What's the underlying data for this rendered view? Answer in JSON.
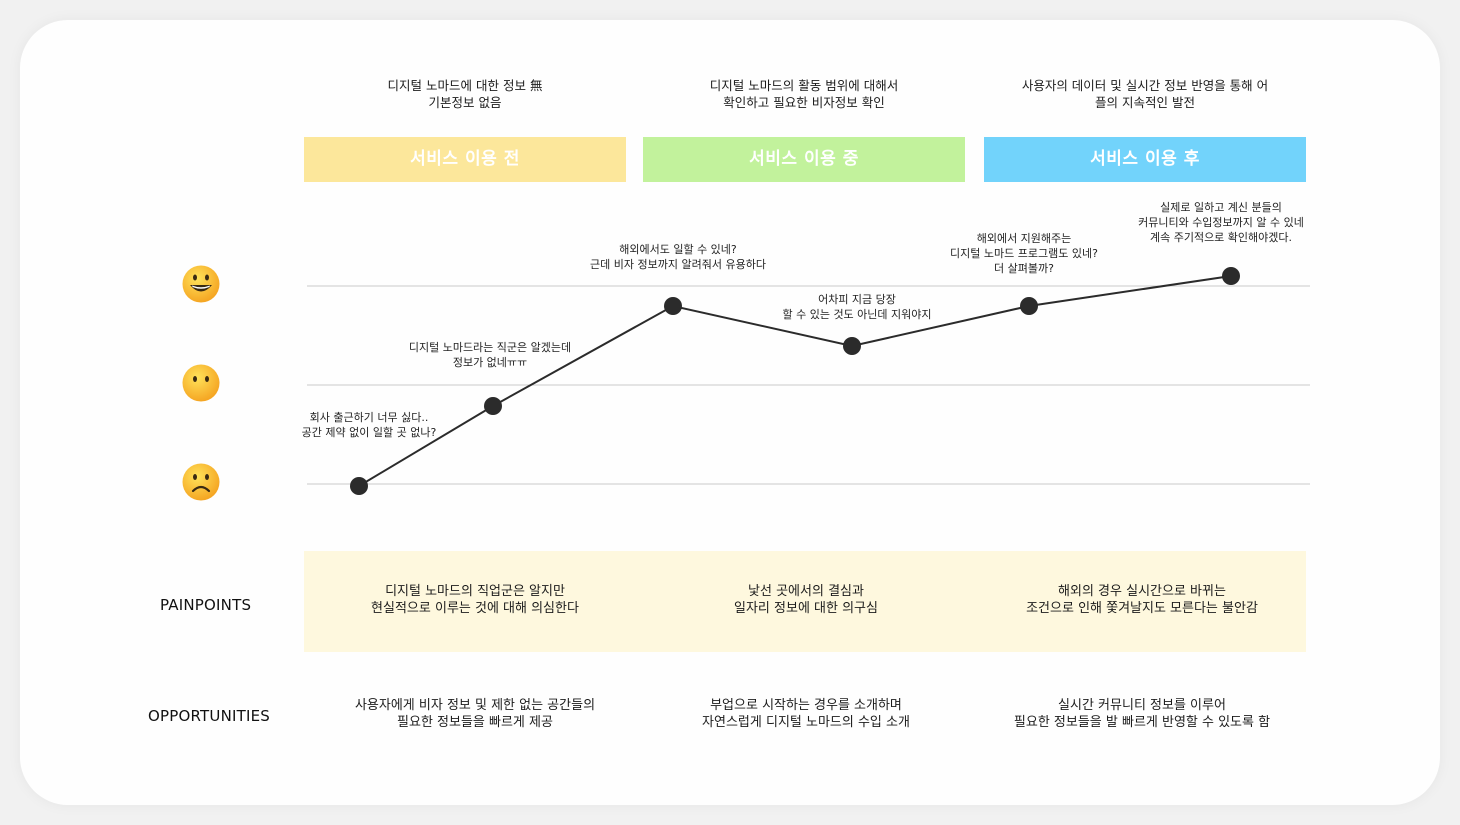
{
  "colors": {
    "phase_before": "#fce79b",
    "phase_during": "#c2f29c",
    "phase_after": "#72d3fb",
    "painpoints_bg": "#fef8de",
    "line": "#2b2b2b",
    "grid": "#c9c9c9"
  },
  "phases": [
    {
      "label": "서비스 이용 전",
      "description": "디지털 노마드에 대한 정보 無\n기본정보 없음"
    },
    {
      "label": "서비스 이용 중",
      "description": "디지털 노마드의 활동 범위에 대해서\n확인하고 필요한 비자정보 확인"
    },
    {
      "label": "서비스 이용 후",
      "description": "사용자의 데이터 및 실시간 정보 반영을 통해 어\n플의 지속적인 발전"
    }
  ],
  "emotion_levels": [
    {
      "name": "happy",
      "icon": "happy-face-icon"
    },
    {
      "name": "neutral",
      "icon": "neutral-face-icon"
    },
    {
      "name": "sad",
      "icon": "sad-face-icon"
    }
  ],
  "chart_data": {
    "type": "line",
    "y_levels": [
      "sad",
      "neutral",
      "happy"
    ],
    "points": [
      {
        "step": 1,
        "emotion": 0.0,
        "note": "회사 출근하기 너무 싫다..\n공간 제약 없이 일할 곳 없나?"
      },
      {
        "step": 2,
        "emotion": 0.8,
        "note": "디지털 노마드라는 직군은 알겠는데\n정보가 없네ㅠㅠ"
      },
      {
        "step": 3,
        "emotion": 1.8,
        "note": "해외에서도 일할 수 있네?\n근데 비자 정보까지 알려줘서 유용하다"
      },
      {
        "step": 4,
        "emotion": 1.4,
        "note": "어차피 지금 당장\n할 수 있는 것도 아닌데 지워야지"
      },
      {
        "step": 5,
        "emotion": 1.8,
        "note": "해외에서 지원해주는\n디지털 노마드 프로그램도 있네?\n더 살펴볼까?"
      },
      {
        "step": 6,
        "emotion": 2.1,
        "note": "실제로 일하고 계신 분들의\n커뮤니티와 수입정보까지 알 수 있네\n계속 주기적으로 확인해야겠다."
      }
    ]
  },
  "painpoints": {
    "label": "PAINPOINTS",
    "items": [
      "디지털 노마드의 직업군은 알지만\n현실적으로 이루는 것에 대해 의심한다",
      "낯선 곳에서의 결심과\n일자리 정보에 대한 의구심",
      "해외의 경우 실시간으로 바뀌는\n조건으로 인해 쫓겨날지도 모른다는 불안감"
    ]
  },
  "opportunities": {
    "label": "OPPORTUNITIES",
    "items": [
      "사용자에게 비자 정보 및 제한 없는 공간들의\n필요한 정보들을 빠르게 제공",
      "부업으로 시작하는 경우를 소개하며\n자연스럽게 디지털 노마드의 수입 소개",
      "실시간 커뮤니티 정보를 이루어\n필요한 정보들을 발 빠르게 반영할 수 있도록 함"
    ]
  }
}
